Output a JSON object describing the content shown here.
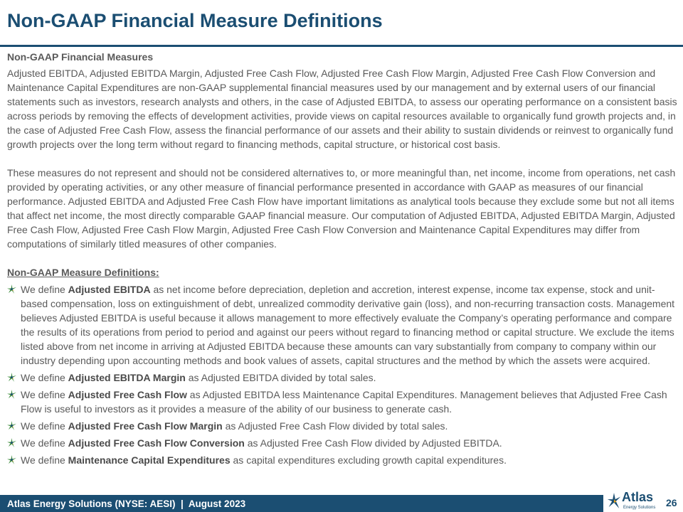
{
  "title": "Non-GAAP Financial Measure Definitions",
  "section1": {
    "heading": "Non-GAAP Financial Measures",
    "p1": "Adjusted EBITDA, Adjusted EBITDA Margin, Adjusted Free Cash Flow, Adjusted Free Cash Flow Margin, Adjusted Free Cash Flow Conversion and Maintenance Capital Expenditures are non-GAAP supplemental financial measures used by our management and by external users of our financial statements such as investors, research analysts and others, in the case of Adjusted EBITDA, to assess our operating performance on a consistent basis across periods by removing the effects of development activities, provide views on capital resources available to organically fund growth projects and, in the case of Adjusted Free Cash Flow, assess the financial performance of our assets and their ability to sustain dividends or reinvest to organically fund growth projects over the long term without regard to financing methods, capital structure, or historical cost basis.",
    "p2": "These measures do not represent and should not be considered alternatives to, or more meaningful than, net income, income from operations, net cash provided by operating activities, or any other measure of financial performance presented in accordance with GAAP as measures of our financial performance. Adjusted EBITDA and Adjusted Free Cash Flow have important limitations as analytical tools because they exclude some but not all items that affect net income, the most directly comparable GAAP financial measure. Our computation of Adjusted EBITDA, Adjusted EBITDA Margin, Adjusted Free Cash Flow, Adjusted Free Cash Flow Margin, Adjusted Free Cash Flow Conversion and Maintenance Capital Expenditures may differ from computations of similarly titled measures of other companies."
  },
  "section2": {
    "heading": "Non-GAAP Measure Definitions:",
    "items": [
      {
        "pre": "We define ",
        "term": "Adjusted EBITDA",
        "post": " as net income before depreciation, depletion and accretion, interest expense, income tax expense, stock and unit-based compensation, loss on extinguishment of debt, unrealized commodity derivative gain (loss), and non-recurring transaction costs. Management believes Adjusted EBITDA is useful because it allows management to more effectively evaluate the Company’s operating performance and compare the results of its operations from period to period and against our peers without regard to financing method or capital structure. We exclude the items listed above from net income in arriving at Adjusted EBITDA because these amounts can vary substantially from company to company within our industry depending upon accounting methods and book values of assets, capital structures and the method by which the assets were acquired."
      },
      {
        "pre": "We define ",
        "term": "Adjusted EBITDA Margin",
        "post": " as Adjusted EBITDA divided by total sales."
      },
      {
        "pre": "We define ",
        "term": "Adjusted Free Cash Flow",
        "post": " as Adjusted EBITDA less Maintenance Capital Expenditures. Management believes that Adjusted Free Cash Flow is useful to investors as it provides a measure of the ability of our business to generate cash."
      },
      {
        "pre": "We define ",
        "term": "Adjusted Free Cash Flow Margin",
        "post": " as Adjusted Free Cash Flow divided by total sales."
      },
      {
        "pre": "We define ",
        "term": "Adjusted Free Cash Flow Conversion",
        "post": " as Adjusted Free Cash Flow divided by Adjusted EBITDA."
      },
      {
        "pre": "We define ",
        "term": "Maintenance Capital Expenditures",
        "post": " as capital expenditures excluding growth capital expenditures."
      }
    ]
  },
  "footer": {
    "text": "Atlas Energy Solutions (NYSE: AESI)  |  August 2023",
    "page": "26"
  },
  "logo": {
    "word": "Atlas",
    "sub": "Energy Solutions"
  },
  "colors": {
    "brand": "#1b4e72",
    "text": "#5a5a5a",
    "star_green": "#3a8a3a",
    "star_gold": "#e0a020"
  },
  "icons": {
    "bullet": "atlas-star-icon"
  }
}
